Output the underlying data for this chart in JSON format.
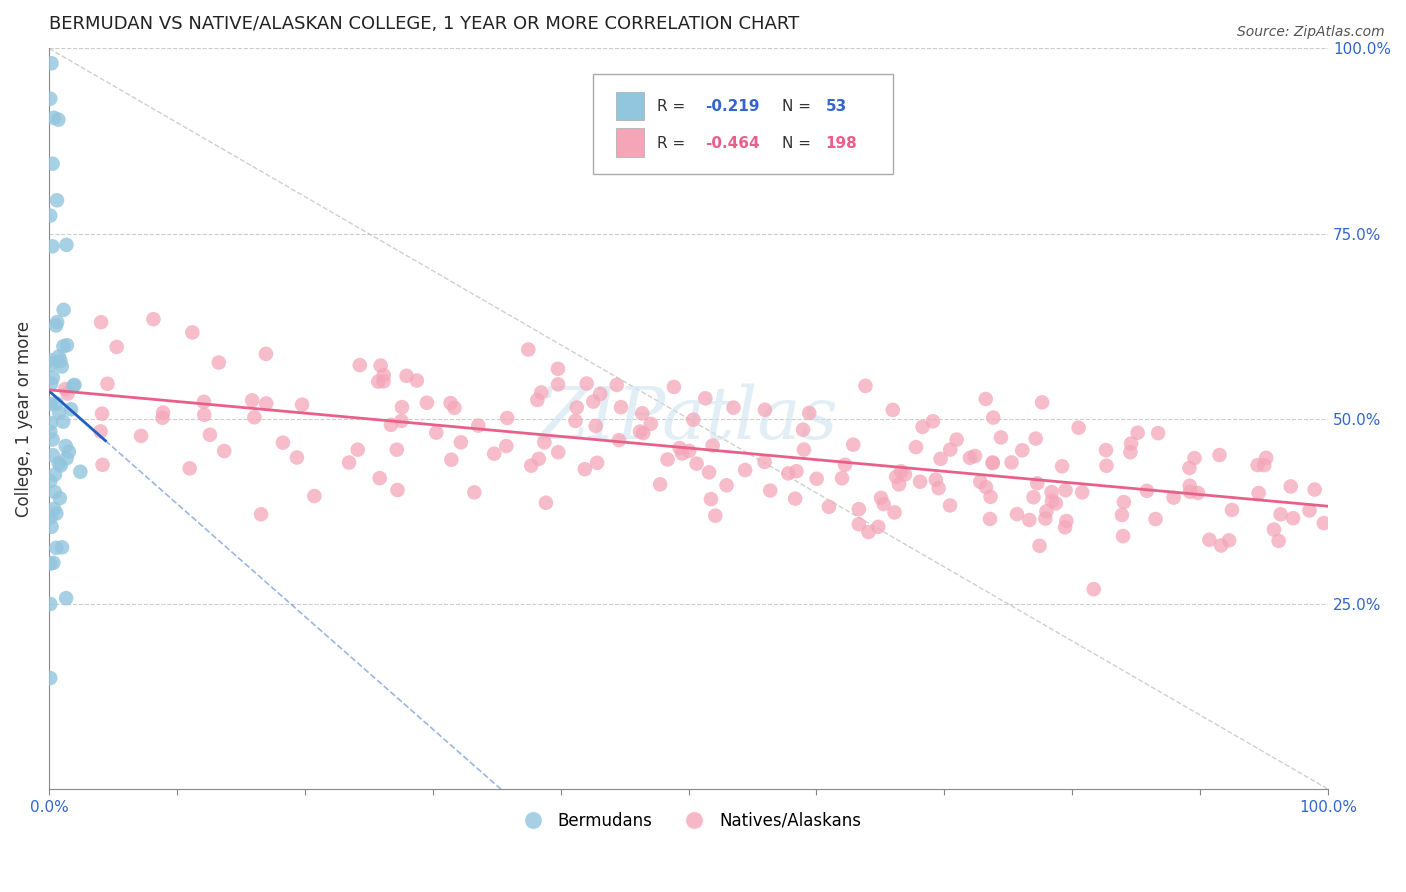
{
  "title": "BERMUDAN VS NATIVE/ALASKAN COLLEGE, 1 YEAR OR MORE CORRELATION CHART",
  "source": "Source: ZipAtlas.com",
  "ylabel": "College, 1 year or more",
  "xlim": [
    0.0,
    1.0
  ],
  "ylim": [
    0.0,
    1.0
  ],
  "blue_R": -0.219,
  "blue_N": 53,
  "pink_R": -0.464,
  "pink_N": 198,
  "blue_color": "#92c5de",
  "pink_color": "#f4a6b8",
  "blue_line_color": "#2060c0",
  "pink_line_color": "#e8608a",
  "legend_label_blue": "Bermudans",
  "legend_label_pink": "Natives/Alaskans",
  "watermark": "ZIPatlas",
  "background_color": "#ffffff",
  "blue_scatter_seed": 10,
  "pink_scatter_seed": 20
}
